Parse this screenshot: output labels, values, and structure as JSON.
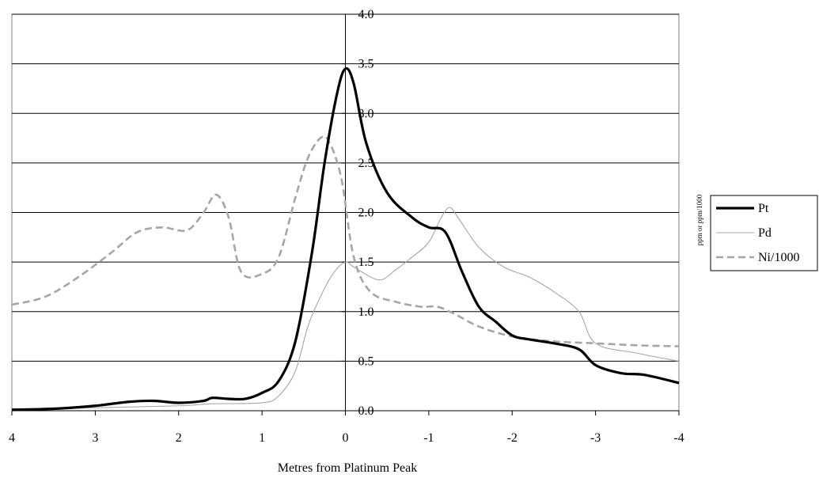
{
  "chart_data": {
    "type": "line",
    "title": "",
    "xlabel": "Metres from Platinum Peak",
    "ylabel": "ppm or ppm/1000",
    "xlim": [
      4,
      -4
    ],
    "ylim": [
      0,
      4
    ],
    "x_ticks": [
      4,
      3,
      2,
      1,
      0,
      -1,
      -2,
      -3,
      -4
    ],
    "x_tick_labels": [
      "4",
      "3",
      "2",
      "1",
      "0",
      "-1",
      "-2",
      "-3",
      "-4"
    ],
    "y_ticks": [
      0,
      0.5,
      1,
      1.5,
      2,
      2.5,
      3,
      3.5,
      4
    ],
    "y_tick_labels": [
      "0.0",
      "0.5",
      "1.0",
      "1.5",
      "2.0",
      "2.5",
      "3.0",
      "3.5",
      "4.0"
    ],
    "grid": "horizontal",
    "legend_position": "right",
    "series": [
      {
        "name": "Pt",
        "style": "thick-solid",
        "color": "#000000",
        "x": [
          4,
          3.5,
          3,
          2.6,
          2.3,
          2,
          1.7,
          1.6,
          1.4,
          1.2,
          1,
          0.8,
          0.6,
          0.4,
          0.25,
          0.1,
          0,
          -0.1,
          -0.25,
          -0.5,
          -0.8,
          -1,
          -1.2,
          -1.4,
          -1.6,
          -1.8,
          -2,
          -2.2,
          -2.5,
          -2.8,
          -3,
          -3.3,
          -3.6,
          -4
        ],
        "y": [
          0.01,
          0.02,
          0.05,
          0.09,
          0.1,
          0.08,
          0.1,
          0.13,
          0.12,
          0.12,
          0.18,
          0.3,
          0.7,
          1.6,
          2.5,
          3.2,
          3.45,
          3.3,
          2.7,
          2.2,
          1.95,
          1.85,
          1.8,
          1.4,
          1.05,
          0.9,
          0.76,
          0.72,
          0.68,
          0.62,
          0.46,
          0.38,
          0.36,
          0.28
        ]
      },
      {
        "name": "Pd",
        "style": "thin-solid",
        "color": "#a6a6a6",
        "x": [
          4,
          3,
          2,
          1.6,
          1,
          0.8,
          0.6,
          0.45,
          0.3,
          0.15,
          0,
          -0.1,
          -0.4,
          -0.6,
          -0.8,
          -1,
          -1.15,
          -1.25,
          -1.35,
          -1.6,
          -1.9,
          -2.2,
          -2.5,
          -2.8,
          -3,
          -3.5,
          -4
        ],
        "y": [
          0.01,
          0.03,
          0.05,
          0.07,
          0.08,
          0.15,
          0.4,
          0.85,
          1.15,
          1.38,
          1.5,
          1.45,
          1.32,
          1.42,
          1.55,
          1.7,
          1.95,
          2.05,
          1.95,
          1.65,
          1.45,
          1.35,
          1.2,
          1.0,
          0.68,
          0.58,
          0.5
        ]
      },
      {
        "name": "Ni/1000",
        "style": "dashed",
        "color": "#a6a6a6",
        "x": [
          4,
          3.6,
          3.2,
          2.8,
          2.5,
          2.2,
          1.9,
          1.7,
          1.55,
          1.4,
          1.25,
          1.0,
          0.8,
          0.6,
          0.45,
          0.3,
          0.2,
          0.05,
          -0.1,
          -0.3,
          -0.6,
          -0.9,
          -1.1,
          -1.3,
          -1.6,
          -2.0,
          -2.5,
          -3.0,
          -3.5,
          -4
        ],
        "y": [
          1.07,
          1.15,
          1.35,
          1.6,
          1.8,
          1.85,
          1.82,
          2.0,
          2.18,
          1.95,
          1.4,
          1.38,
          1.55,
          2.15,
          2.55,
          2.75,
          2.72,
          2.35,
          1.55,
          1.2,
          1.1,
          1.05,
          1.05,
          0.98,
          0.85,
          0.75,
          0.7,
          0.68,
          0.66,
          0.65
        ]
      }
    ]
  }
}
